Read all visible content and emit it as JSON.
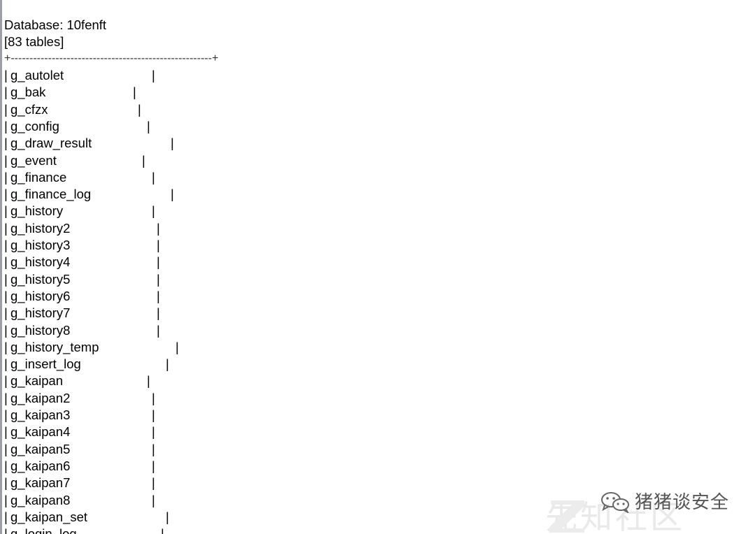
{
  "terminal": {
    "database_line": "Database: 10fenft",
    "count_line": "[83 tables]",
    "border_line": "+------------------------------------------------------+",
    "tables": [
      "g_autolet",
      "g_bak",
      "g_cfzx",
      "g_config",
      "g_draw_result",
      "g_event",
      "g_finance",
      "g_finance_log",
      "g_history",
      "g_history2",
      "g_history3",
      "g_history4",
      "g_history5",
      "g_history6",
      "g_history7",
      "g_history8",
      "g_history_temp",
      "g_insert_log",
      "g_kaipan",
      "g_kaipan2",
      "g_kaipan3",
      "g_kaipan4",
      "g_kaipan5",
      "g_kaipan6",
      "g_kaipan7",
      "g_kaipan8",
      "g_kaipan_set",
      "g_login_log"
    ]
  },
  "watermark": {
    "account_name": "猪猪谈安全",
    "bg_text": "先知社区",
    "icon": "wechat-icon",
    "color": "#555555"
  }
}
